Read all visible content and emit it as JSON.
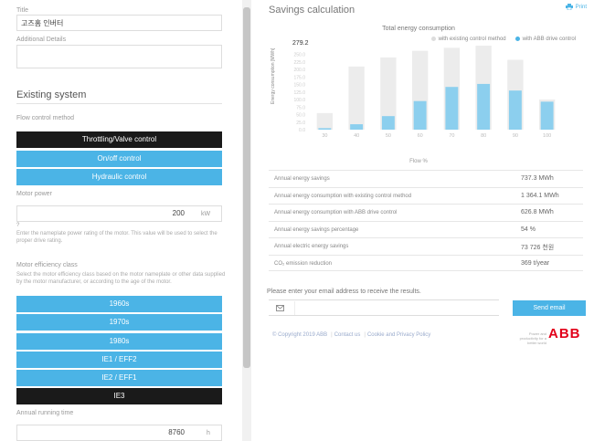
{
  "form": {
    "title_label": "Title",
    "title_value": "고즈홈 인버터",
    "details_label": "Additional Details",
    "details_value": "",
    "section_title": "Existing system",
    "flow_label": "Flow control method",
    "flow_options": [
      {
        "label": "Throttling/Valve control",
        "selected": true
      },
      {
        "label": "On/off control",
        "selected": false
      },
      {
        "label": "Hydraulic control",
        "selected": false
      }
    ],
    "motor_power_label": "Motor power",
    "motor_power_value": "200",
    "motor_power_unit": "kW",
    "motor_power_note": "?",
    "motor_power_help": "Enter the nameplate power rating of the motor. This value will be used to select the proper drive rating.",
    "efficiency_label": "Motor efficiency class",
    "efficiency_help": "Select the motor efficiency class based on the motor nameplate or other data supplied by the motor manufacturer, or according to the age of the motor.",
    "efficiency_options": [
      {
        "label": "1960s",
        "selected": false
      },
      {
        "label": "1970s",
        "selected": false
      },
      {
        "label": "1980s",
        "selected": false
      },
      {
        "label": "IE1 / EFF2",
        "selected": false
      },
      {
        "label": "IE2 / EFF1",
        "selected": false
      },
      {
        "label": "IE3",
        "selected": true
      }
    ],
    "running_time_label": "Annual running time",
    "running_time_value": "8760",
    "running_time_unit": "h"
  },
  "results_panel": {
    "title": "Savings calculation",
    "print_label": "Print",
    "email_prompt": "Please enter your email address to receive the results.",
    "email_placeholder": "",
    "send_label": "Send email",
    "footer": {
      "copyright": "© Copyright 2019 ABB",
      "contact": "Contact us",
      "cookie": "Cookie and Privacy Policy",
      "tagline": "Power and productivity for a better world",
      "logo_text": "ABB"
    },
    "rows": [
      {
        "key": "Annual energy savings",
        "value": "737.3 MWh"
      },
      {
        "key": "Annual energy consumption with existing control method",
        "value": "1 364.1 MWh"
      },
      {
        "key": "Annual energy consumption with ABB drive control",
        "value": "626.8 MWh"
      },
      {
        "key": "Annual energy savings percentage",
        "value": "54 %"
      },
      {
        "key": "Annual electric energy savings",
        "value": "73 726 천원"
      },
      {
        "key": "CO₂ emission reduction",
        "value": "369 t/year"
      }
    ]
  },
  "chart_data": {
    "type": "bar",
    "title": "Total energy consumption",
    "ylabel": "Energy consumption [MWh]",
    "xlabel": "Flow %",
    "ymax_label": "279.2",
    "ylim": [
      0,
      279.2
    ],
    "y_ticks": [
      0,
      25,
      50,
      75,
      100,
      125,
      150,
      175,
      200,
      225,
      250
    ],
    "categories": [
      "30",
      "40",
      "50",
      "60",
      "70",
      "80",
      "90",
      "100"
    ],
    "series": [
      {
        "name": "with existing control method",
        "color": "#ececec",
        "values": [
          55,
          210,
          240,
          262,
          272,
          279,
          232,
          100
        ]
      },
      {
        "name": "with ABB drive control",
        "color": "#8ccfee",
        "values": [
          5,
          18,
          45,
          95,
          142,
          152,
          130,
          93
        ]
      }
    ]
  }
}
